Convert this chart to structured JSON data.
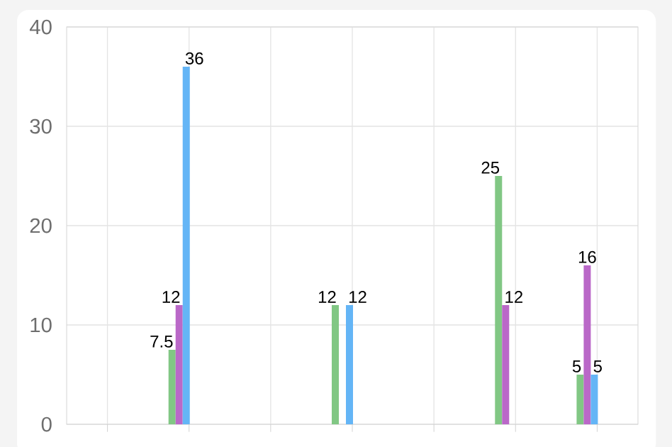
{
  "chart_data": {
    "type": "bar",
    "categories": [
      null,
      null,
      null,
      null,
      null,
      null,
      null
    ],
    "series": [
      {
        "color": "#81c784",
        "values": [
          null,
          7.5,
          null,
          12,
          null,
          25,
          5
        ]
      },
      {
        "color": "#ba68c8",
        "values": [
          null,
          12,
          null,
          null,
          null,
          12,
          16
        ]
      },
      {
        "color": "#64b5f6",
        "values": [
          null,
          36,
          null,
          12,
          null,
          null,
          5
        ]
      }
    ],
    "ylim": [
      0,
      40
    ],
    "yticks": [
      0,
      10,
      20,
      30,
      40
    ],
    "grid": true,
    "data_labels": true
  }
}
